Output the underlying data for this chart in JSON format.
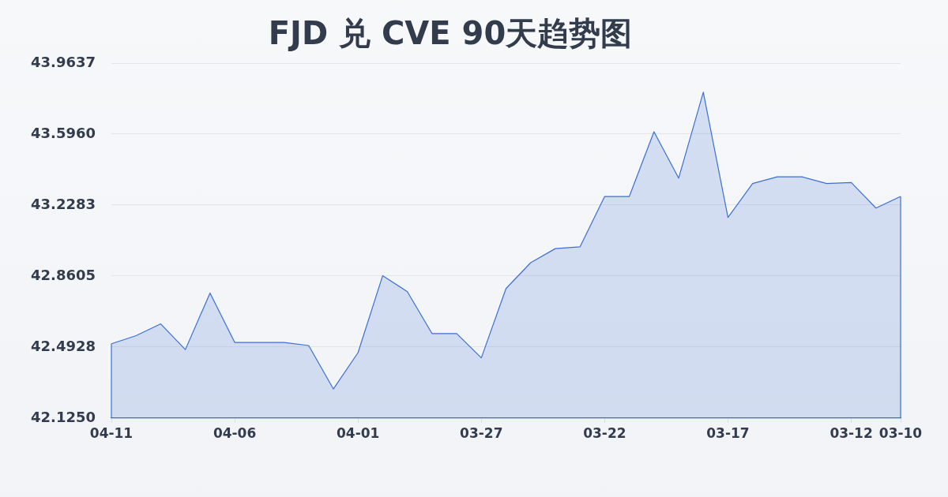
{
  "chart_data": {
    "type": "area",
    "title": "FJD 兑 CVE 90天趋势图",
    "categories": [
      "04-11",
      null,
      null,
      null,
      null,
      "04-06",
      null,
      null,
      null,
      null,
      "04-01",
      null,
      null,
      null,
      null,
      "03-27",
      null,
      null,
      null,
      null,
      "03-22",
      null,
      null,
      null,
      null,
      "03-17",
      null,
      null,
      null,
      null,
      "03-12",
      null,
      "03-10"
    ],
    "values": [
      42.51,
      42.552,
      42.613,
      42.48,
      42.773,
      42.517,
      42.517,
      42.517,
      42.501,
      42.276,
      42.464,
      42.863,
      42.78,
      42.563,
      42.563,
      42.437,
      42.796,
      42.93,
      43.003,
      43.012,
      43.273,
      43.273,
      43.608,
      43.368,
      43.813,
      43.164,
      43.34,
      43.375,
      43.375,
      43.34,
      43.345,
      43.213,
      43.273
    ],
    "color": "#3b6fd4",
    "ylim": [
      42.125,
      43.9637
    ],
    "yticks": [
      {
        "value": 42.125,
        "label": "42.1250"
      },
      42.4928,
      42.8605,
      43.2283,
      {
        "value": 43.596,
        "label": "43.5960"
      },
      43.9637
    ],
    "grid": "y"
  }
}
